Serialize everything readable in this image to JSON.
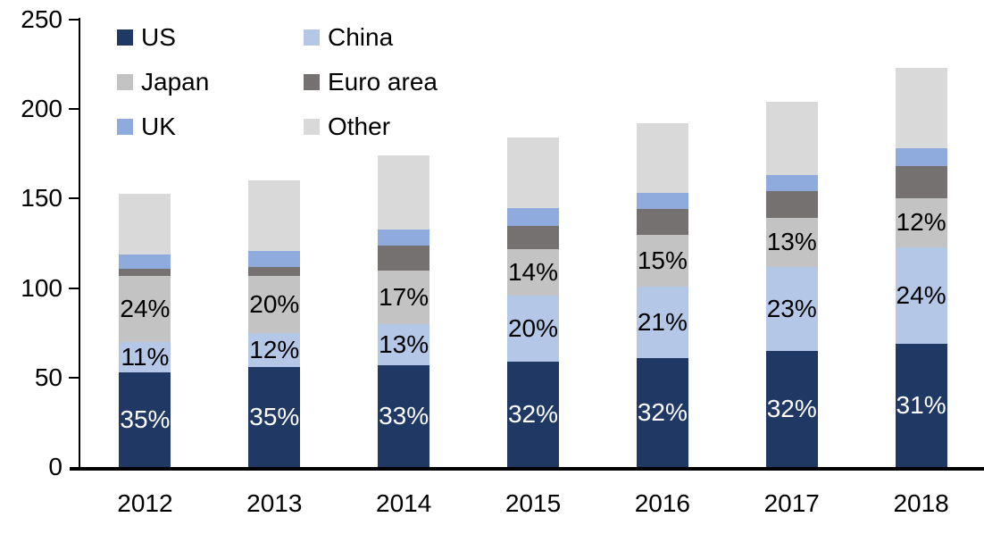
{
  "chart_data": {
    "type": "bar",
    "stacked": true,
    "title": "",
    "xlabel": "",
    "ylabel": "",
    "grid": false,
    "background_color": "#FFFFFF",
    "axis_color": "#000000",
    "categories": [
      "2012",
      "2013",
      "2014",
      "2015",
      "2016",
      "2017",
      "2018"
    ],
    "totals": [
      153,
      160,
      174,
      184,
      192,
      204,
      223
    ],
    "y_axis": {
      "min": 0,
      "max": 250,
      "step": 50,
      "ticks": [
        "0",
        "50",
        "100",
        "150",
        "200",
        "250"
      ]
    },
    "legend": {
      "position": "top-left",
      "columns": 2,
      "order": [
        "US",
        "China",
        "Japan",
        "Euro area",
        "UK",
        "Other"
      ]
    },
    "series": [
      {
        "name": "US",
        "color": "#1F3864",
        "values": [
          53,
          56,
          57,
          59,
          61,
          65,
          69
        ],
        "labels": [
          "35%",
          "35%",
          "33%",
          "32%",
          "32%",
          "32%",
          "31%"
        ],
        "label_color": "#FFFFFF"
      },
      {
        "name": "China",
        "color": "#B4C7E7",
        "values": [
          17,
          19,
          23,
          37,
          40,
          47,
          54
        ],
        "labels": [
          "11%",
          "12%",
          "13%",
          "20%",
          "21%",
          "23%",
          "24%"
        ],
        "label_color": "#000000"
      },
      {
        "name": "Japan",
        "color": "#C3C3C3",
        "values": [
          37,
          32,
          30,
          26,
          29,
          27,
          27
        ],
        "labels": [
          "24%",
          "20%",
          "17%",
          "14%",
          "15%",
          "13%",
          "12%"
        ],
        "label_color": "#000000"
      },
      {
        "name": "Euro area",
        "color": "#767171",
        "values": [
          4,
          5,
          14,
          13,
          14,
          15,
          18
        ]
      },
      {
        "name": "UK",
        "color": "#8FAADC",
        "values": [
          8,
          9,
          9,
          10,
          9,
          9,
          10
        ]
      },
      {
        "name": "Other",
        "color": "#D9D9D9",
        "values": [
          34,
          39,
          41,
          39,
          39,
          41,
          45
        ]
      }
    ]
  }
}
